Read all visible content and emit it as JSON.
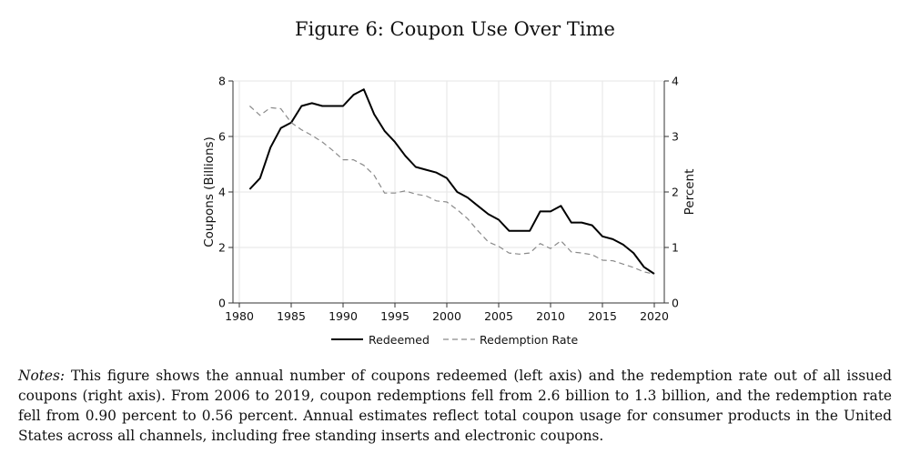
{
  "figure": {
    "title": "Figure 6: Coupon Use Over Time",
    "notes_lead": "Notes:",
    "notes_body": "This figure shows the annual number of coupons redeemed (left axis) and the redemption rate out of all issued coupons (right axis). From 2006 to 2019, coupon redemptions fell from 2.6 billion to 1.3 billion, and the redemption rate fell from 0.90 percent to 0.56 percent. Annual estimates reflect total coupon usage for consumer products in the United States across all channels, including free standing inserts and electronic coupons."
  },
  "chart_data": {
    "type": "line",
    "title": "",
    "xlabel": "",
    "ylabel_left": "Coupons (Billions)",
    "ylabel_right": "Percent",
    "xlim": [
      1980,
      2020
    ],
    "ylim_left": [
      0,
      8
    ],
    "ylim_right": [
      0,
      4
    ],
    "xticks": [
      1980,
      1985,
      1990,
      1995,
      2000,
      2005,
      2010,
      2015,
      2020
    ],
    "yticks_left": [
      0,
      2,
      4,
      6,
      8
    ],
    "yticks_right": [
      0,
      1,
      2,
      3,
      4
    ],
    "grid": true,
    "legend_position": "bottom",
    "x": [
      1981,
      1982,
      1983,
      1984,
      1985,
      1986,
      1987,
      1988,
      1989,
      1990,
      1991,
      1992,
      1993,
      1994,
      1995,
      1996,
      1997,
      1998,
      1999,
      2000,
      2001,
      2002,
      2003,
      2004,
      2005,
      2006,
      2007,
      2008,
      2009,
      2010,
      2011,
      2012,
      2013,
      2014,
      2015,
      2016,
      2017,
      2018,
      2019,
      2020
    ],
    "series": [
      {
        "name": "Redeemed",
        "axis": "left",
        "style": "solid",
        "color": "#000000",
        "values": [
          4.1,
          4.5,
          5.6,
          6.3,
          6.5,
          7.1,
          7.2,
          7.1,
          7.1,
          7.1,
          7.5,
          7.7,
          6.8,
          6.2,
          5.8,
          5.3,
          4.9,
          4.8,
          4.7,
          4.5,
          4.0,
          3.8,
          3.5,
          3.2,
          3.0,
          2.6,
          2.6,
          2.6,
          3.3,
          3.3,
          3.5,
          2.9,
          2.9,
          2.8,
          2.4,
          2.3,
          2.1,
          1.8,
          1.3,
          1.05
        ]
      },
      {
        "name": "Redemption Rate",
        "axis": "right",
        "style": "dashed",
        "color": "#8a8a8a",
        "values": [
          3.55,
          3.38,
          3.52,
          3.5,
          3.25,
          3.12,
          3.02,
          2.9,
          2.75,
          2.58,
          2.58,
          2.48,
          2.3,
          1.98,
          1.98,
          2.02,
          1.96,
          1.93,
          1.84,
          1.82,
          1.68,
          1.52,
          1.3,
          1.1,
          1.02,
          0.9,
          0.88,
          0.9,
          1.07,
          0.98,
          1.12,
          0.92,
          0.9,
          0.87,
          0.77,
          0.76,
          0.7,
          0.64,
          0.56,
          0.52
        ]
      }
    ]
  }
}
